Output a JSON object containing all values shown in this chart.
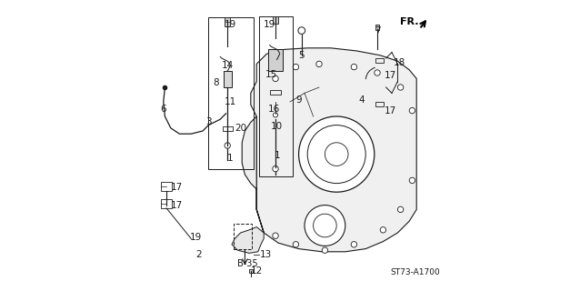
{
  "background_color": "#ffffff",
  "diagram_code": "ST73-A1700",
  "fr_label": "FR.",
  "line_color": "#1a1a1a",
  "text_color": "#1a1a1a",
  "font_size": 7.5
}
